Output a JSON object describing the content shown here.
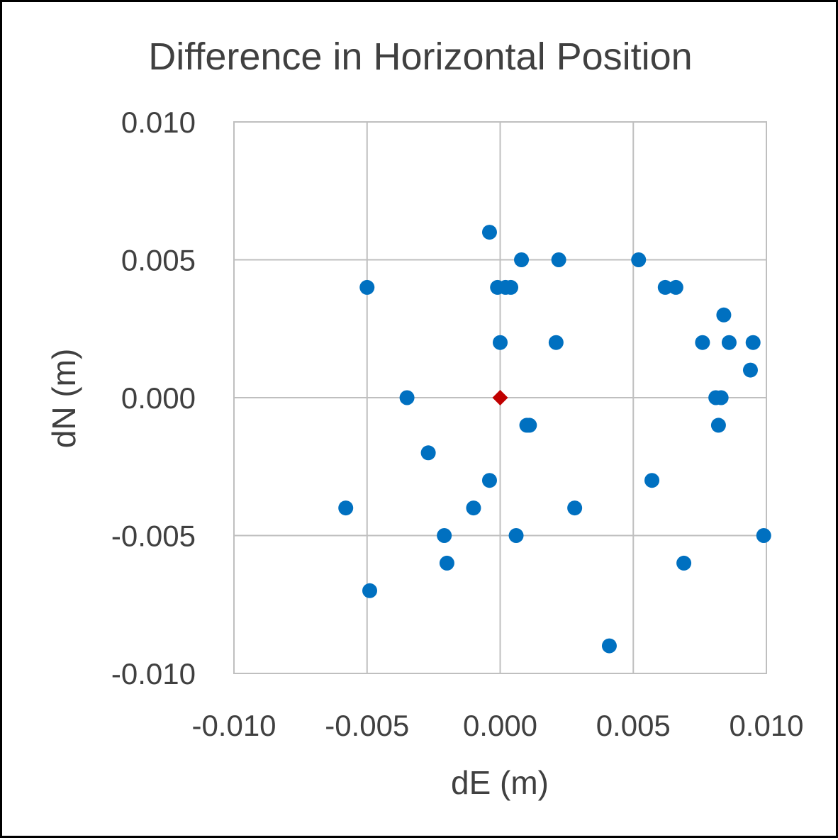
{
  "chart_data": {
    "type": "scatter",
    "title": "Difference in Horizontal Position",
    "xlabel": "dE (m)",
    "ylabel": "dN (m)",
    "xlim": [
      -0.01,
      0.01
    ],
    "ylim": [
      -0.01,
      0.01
    ],
    "x_ticks": [
      "-0.010",
      "-0.005",
      "0.000",
      "0.005",
      "0.010"
    ],
    "y_ticks": [
      "0.010",
      "0.005",
      "0.000",
      "-0.005",
      "-0.010"
    ],
    "grid": true,
    "legend": "none",
    "colors": {
      "points": "#0070C0",
      "reference": "#C00000",
      "grid": "#BFBFBF",
      "text": "#404040"
    },
    "series": [
      {
        "marker": "circle",
        "color": "#0070C0",
        "points": [
          {
            "x": -0.0004,
            "y": 0.006
          },
          {
            "x": 0.0008,
            "y": 0.005
          },
          {
            "x": 0.0022,
            "y": 0.005
          },
          {
            "x": 0.0052,
            "y": 0.005
          },
          {
            "x": -0.005,
            "y": 0.004
          },
          {
            "x": -0.0001,
            "y": 0.004
          },
          {
            "x": 0.0002,
            "y": 0.004
          },
          {
            "x": 0.0004,
            "y": 0.004
          },
          {
            "x": 0.0062,
            "y": 0.004
          },
          {
            "x": 0.0066,
            "y": 0.004
          },
          {
            "x": 0.0084,
            "y": 0.003
          },
          {
            "x": 0.0,
            "y": 0.002
          },
          {
            "x": 0.0021,
            "y": 0.002
          },
          {
            "x": 0.0076,
            "y": 0.002
          },
          {
            "x": 0.0086,
            "y": 0.002
          },
          {
            "x": 0.0095,
            "y": 0.002
          },
          {
            "x": 0.0094,
            "y": 0.001
          },
          {
            "x": -0.0035,
            "y": 0.0
          },
          {
            "x": 0.0081,
            "y": 0.0
          },
          {
            "x": 0.0083,
            "y": 0.0
          },
          {
            "x": 0.001,
            "y": -0.001
          },
          {
            "x": 0.0011,
            "y": -0.001
          },
          {
            "x": 0.0082,
            "y": -0.001
          },
          {
            "x": -0.0027,
            "y": -0.002
          },
          {
            "x": -0.0004,
            "y": -0.003
          },
          {
            "x": 0.0057,
            "y": -0.003
          },
          {
            "x": -0.0058,
            "y": -0.004
          },
          {
            "x": -0.001,
            "y": -0.004
          },
          {
            "x": 0.0028,
            "y": -0.004
          },
          {
            "x": -0.0021,
            "y": -0.005
          },
          {
            "x": 0.0006,
            "y": -0.005
          },
          {
            "x": 0.0099,
            "y": -0.005
          },
          {
            "x": -0.002,
            "y": -0.006
          },
          {
            "x": 0.0069,
            "y": -0.006
          },
          {
            "x": -0.0049,
            "y": -0.007
          },
          {
            "x": 0.0041,
            "y": -0.009
          }
        ]
      },
      {
        "marker": "diamond",
        "color": "#C00000",
        "points": [
          {
            "x": 0.0,
            "y": 0.0
          }
        ]
      }
    ]
  }
}
